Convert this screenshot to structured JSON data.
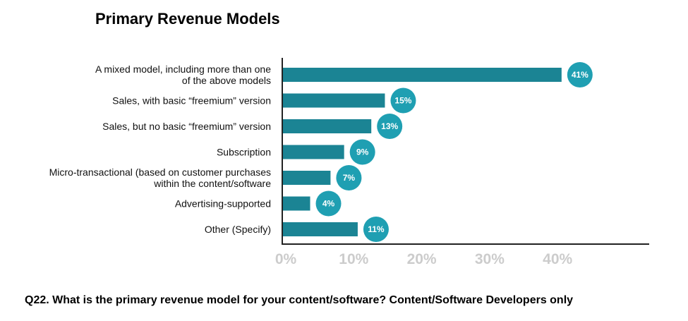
{
  "chart_data": {
    "type": "bar",
    "orientation": "horizontal",
    "title": "Primary Revenue Models",
    "categories": [
      [
        "A mixed model, including more than one",
        "of the above models"
      ],
      [
        "Sales, with basic “freemium” version"
      ],
      [
        "Sales, but no basic “freemium” version"
      ],
      [
        "Subscription"
      ],
      [
        "Micro-transactional (based on customer purchases",
        "within the content/software"
      ],
      [
        "Advertising-supported"
      ],
      [
        "Other (Specify)"
      ]
    ],
    "values": [
      41,
      15,
      13,
      9,
      7,
      4,
      11
    ],
    "data_labels": [
      "41%",
      "15%",
      "13%",
      "9%",
      "7%",
      "4%",
      "11%"
    ],
    "xlim": [
      0,
      48
    ],
    "xticks": [
      0,
      10,
      20,
      30,
      40
    ],
    "xtick_labels": [
      "0%",
      "10%",
      "20%",
      "30%",
      "40%"
    ],
    "xlabel": "",
    "ylabel": "",
    "grid": false,
    "colors": {
      "bar": "#1b8494",
      "label_circle": "#1f9fb2",
      "tick": "#cccccc"
    }
  },
  "caption": "Q22. What is the primary revenue model for your content/software? Content/Software Developers only"
}
